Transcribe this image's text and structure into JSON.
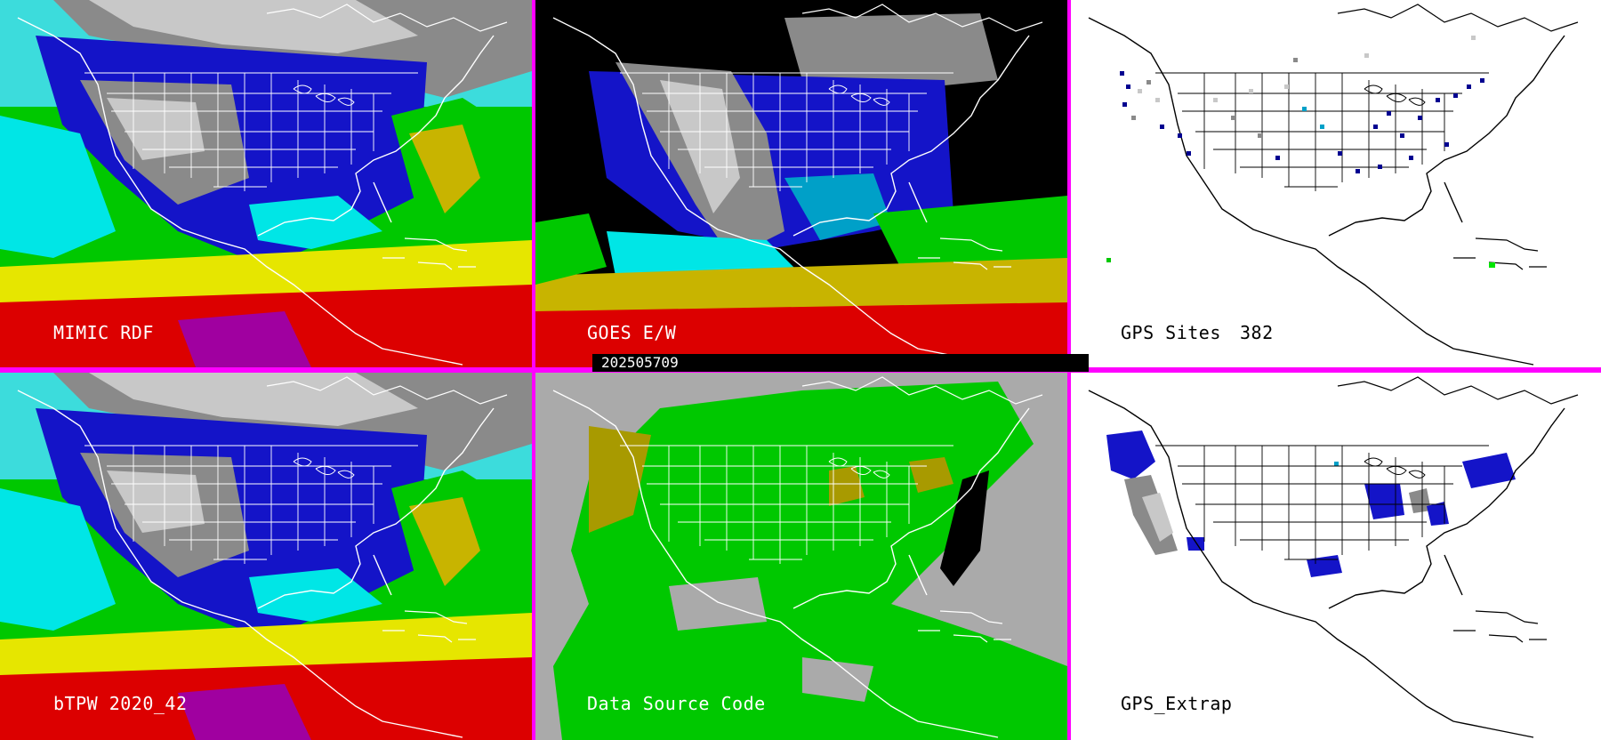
{
  "panels": {
    "mimic_rdf": {
      "label": "MIMIC RDF"
    },
    "goes_ew": {
      "label": "GOES E/W"
    },
    "gps_sites": {
      "label": "GPS Sites",
      "count": "382"
    },
    "btpw": {
      "label": "bTPW 2020_42"
    },
    "data_source": {
      "label": "Data Source Code"
    },
    "gps_extrap": {
      "label": "GPS_Extrap"
    }
  },
  "timestamp": "202505709",
  "colors": {
    "border": "#ff00ff",
    "pw_scale": [
      "#8a8a8a",
      "#c8c8c8",
      "#000090",
      "#1414c8",
      "#3c3cdc",
      "#00a0c8",
      "#00e6e6",
      "#00c800",
      "#96dc00",
      "#c8b400",
      "#e6e600",
      "#dc0000",
      "#a000a0"
    ],
    "data_source_green": "#00c800",
    "data_source_gray": "#aaaaaa",
    "data_source_olive": "#a89a00"
  }
}
